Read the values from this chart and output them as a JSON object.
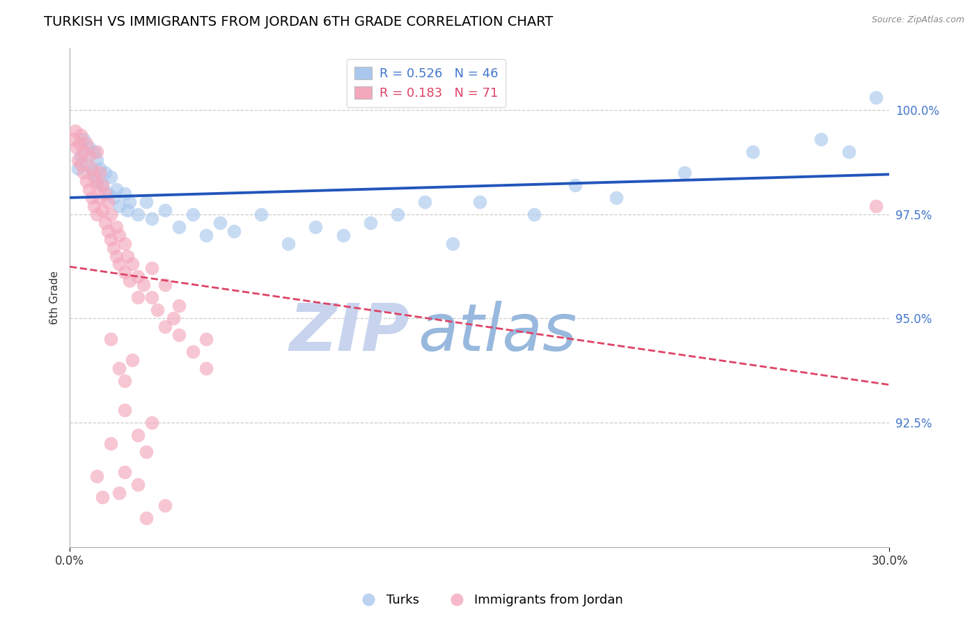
{
  "title": "TURKISH VS IMMIGRANTS FROM JORDAN 6TH GRADE CORRELATION CHART",
  "source_text": "Source: ZipAtlas.com",
  "xmin": 0.0,
  "xmax": 30.0,
  "ymin": 89.5,
  "ymax": 101.5,
  "ytick_vals": [
    92.5,
    95.0,
    97.5,
    100.0
  ],
  "legend_blue_label": "R = 0.526   N = 46",
  "legend_pink_label": "R = 0.183   N = 71",
  "legend_bottom_blue": "Turks",
  "legend_bottom_pink": "Immigrants from Jordan",
  "blue_color": "#aac8ee",
  "pink_color": "#f4a8bc",
  "blue_line_color": "#2255bb",
  "pink_line_color": "#dd4466",
  "watermark_zip": "ZIP",
  "watermark_atlas": "atlas",
  "watermark_zip_color": "#c8d4ee",
  "watermark_atlas_color": "#98b8dd",
  "title_fontsize": 14,
  "blue_points": [
    [
      0.3,
      98.6
    ],
    [
      0.4,
      98.9
    ],
    [
      0.5,
      99.3
    ],
    [
      0.6,
      98.7
    ],
    [
      0.7,
      99.1
    ],
    [
      0.8,
      98.5
    ],
    [
      0.9,
      99.0
    ],
    [
      1.0,
      98.3
    ],
    [
      1.0,
      98.8
    ],
    [
      1.1,
      98.6
    ],
    [
      1.2,
      98.2
    ],
    [
      1.3,
      98.5
    ],
    [
      1.4,
      98.0
    ],
    [
      1.5,
      98.4
    ],
    [
      1.6,
      97.9
    ],
    [
      1.7,
      98.1
    ],
    [
      1.8,
      97.7
    ],
    [
      2.0,
      98.0
    ],
    [
      2.1,
      97.6
    ],
    [
      2.2,
      97.8
    ],
    [
      2.5,
      97.5
    ],
    [
      2.8,
      97.8
    ],
    [
      3.0,
      97.4
    ],
    [
      3.5,
      97.6
    ],
    [
      4.0,
      97.2
    ],
    [
      4.5,
      97.5
    ],
    [
      5.0,
      97.0
    ],
    [
      5.5,
      97.3
    ],
    [
      6.0,
      97.1
    ],
    [
      7.0,
      97.5
    ],
    [
      8.0,
      96.8
    ],
    [
      9.0,
      97.2
    ],
    [
      10.0,
      97.0
    ],
    [
      11.0,
      97.3
    ],
    [
      12.0,
      97.5
    ],
    [
      13.0,
      97.8
    ],
    [
      14.0,
      96.8
    ],
    [
      15.0,
      97.8
    ],
    [
      17.0,
      97.5
    ],
    [
      18.5,
      98.2
    ],
    [
      20.0,
      97.9
    ],
    [
      22.5,
      98.5
    ],
    [
      25.0,
      99.0
    ],
    [
      27.5,
      99.3
    ],
    [
      28.5,
      99.0
    ],
    [
      29.5,
      100.3
    ]
  ],
  "pink_points": [
    [
      0.15,
      99.3
    ],
    [
      0.2,
      99.5
    ],
    [
      0.25,
      99.1
    ],
    [
      0.3,
      98.8
    ],
    [
      0.35,
      99.2
    ],
    [
      0.4,
      99.4
    ],
    [
      0.4,
      98.7
    ],
    [
      0.5,
      99.0
    ],
    [
      0.5,
      98.5
    ],
    [
      0.6,
      99.2
    ],
    [
      0.6,
      98.3
    ],
    [
      0.7,
      98.9
    ],
    [
      0.7,
      98.1
    ],
    [
      0.8,
      98.6
    ],
    [
      0.8,
      97.9
    ],
    [
      0.9,
      98.4
    ],
    [
      0.9,
      97.7
    ],
    [
      1.0,
      98.2
    ],
    [
      1.0,
      97.5
    ],
    [
      1.0,
      99.0
    ],
    [
      1.1,
      97.9
    ],
    [
      1.1,
      98.5
    ],
    [
      1.2,
      97.6
    ],
    [
      1.2,
      98.2
    ],
    [
      1.3,
      97.3
    ],
    [
      1.3,
      98.0
    ],
    [
      1.4,
      97.1
    ],
    [
      1.4,
      97.8
    ],
    [
      1.5,
      96.9
    ],
    [
      1.5,
      97.5
    ],
    [
      1.6,
      96.7
    ],
    [
      1.7,
      97.2
    ],
    [
      1.7,
      96.5
    ],
    [
      1.8,
      97.0
    ],
    [
      1.8,
      96.3
    ],
    [
      2.0,
      96.8
    ],
    [
      2.0,
      96.1
    ],
    [
      2.1,
      96.5
    ],
    [
      2.2,
      95.9
    ],
    [
      2.3,
      96.3
    ],
    [
      2.5,
      96.0
    ],
    [
      2.5,
      95.5
    ],
    [
      2.7,
      95.8
    ],
    [
      3.0,
      95.5
    ],
    [
      3.0,
      96.2
    ],
    [
      3.2,
      95.2
    ],
    [
      3.5,
      95.8
    ],
    [
      3.5,
      94.8
    ],
    [
      3.8,
      95.0
    ],
    [
      4.0,
      94.6
    ],
    [
      4.0,
      95.3
    ],
    [
      4.5,
      94.2
    ],
    [
      5.0,
      94.5
    ],
    [
      5.0,
      93.8
    ],
    [
      1.5,
      94.5
    ],
    [
      1.8,
      93.8
    ],
    [
      2.0,
      93.5
    ],
    [
      2.3,
      94.0
    ],
    [
      2.0,
      92.8
    ],
    [
      2.5,
      92.2
    ],
    [
      2.8,
      91.8
    ],
    [
      3.0,
      92.5
    ],
    [
      1.5,
      92.0
    ],
    [
      2.0,
      91.3
    ],
    [
      1.8,
      90.8
    ],
    [
      2.5,
      91.0
    ],
    [
      3.5,
      90.5
    ],
    [
      1.0,
      91.2
    ],
    [
      2.8,
      90.2
    ],
    [
      1.2,
      90.7
    ],
    [
      29.5,
      97.7
    ]
  ]
}
